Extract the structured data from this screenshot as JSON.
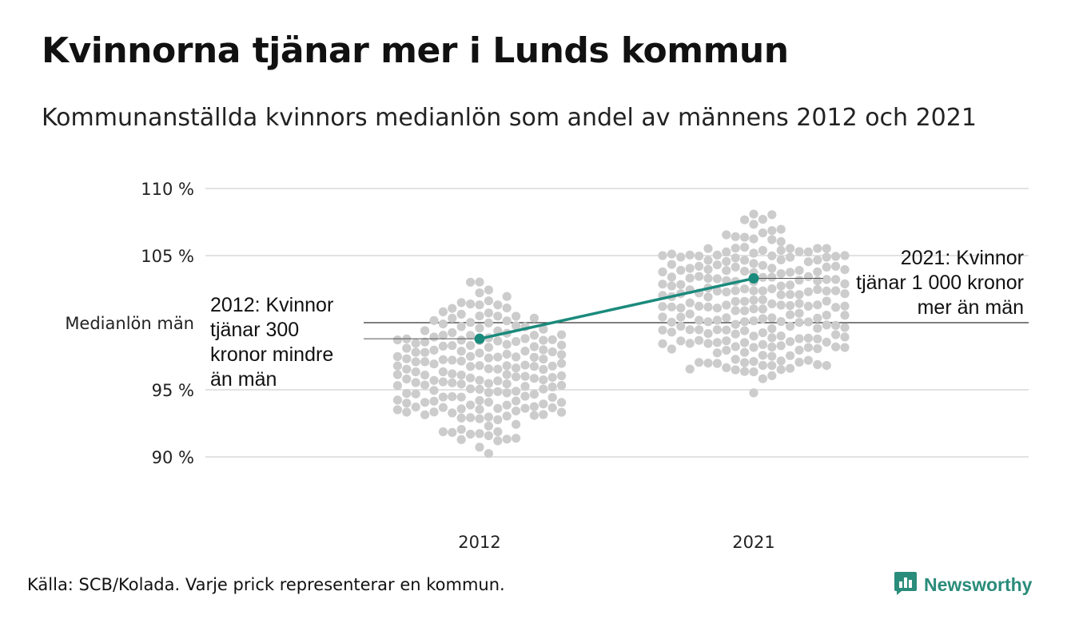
{
  "title": "Kvinnorna tjänar mer i Lunds kommun",
  "subtitle": "Kommunanställda kvinnors medianlön som andel av männens 2012 och 2021",
  "source": "Källa: SCB/Kolada. Varje prick representerar en kommun.",
  "brand": {
    "name": "Newsworthy",
    "icon": "newsworthy-logo-icon",
    "color": "#2a8c7a"
  },
  "colors": {
    "dots": "#cccccc",
    "highlight": "#1a8a7c",
    "grid": "#e2e2e2",
    "reference": "#333333"
  },
  "chart_data": {
    "type": "scatter",
    "categories": [
      "2012",
      "2021"
    ],
    "y_ticks": [
      {
        "value": 90,
        "label": "90 %"
      },
      {
        "value": 95,
        "label": "95 %"
      },
      {
        "value": 105,
        "label": "105 %"
      },
      {
        "value": 110,
        "label": "110 %"
      }
    ],
    "reference_line": {
      "value": 100,
      "label": "Medianlön män"
    },
    "ylim": [
      86,
      112
    ],
    "highlight": {
      "name": "Lund",
      "points": [
        {
          "x": "2012",
          "y": 98.8
        },
        {
          "x": "2021",
          "y": 103.3
        }
      ]
    },
    "annotations": [
      {
        "x": "2012",
        "lines": [
          "2012: Kvinnor",
          "tjänar 300",
          "kronor mindre",
          "än män"
        ]
      },
      {
        "x": "2021",
        "lines": [
          "2021: Kvinnor",
          "tjänar 1 000 kronor",
          "mer än män"
        ]
      }
    ],
    "grid": true,
    "legend": "none"
  }
}
